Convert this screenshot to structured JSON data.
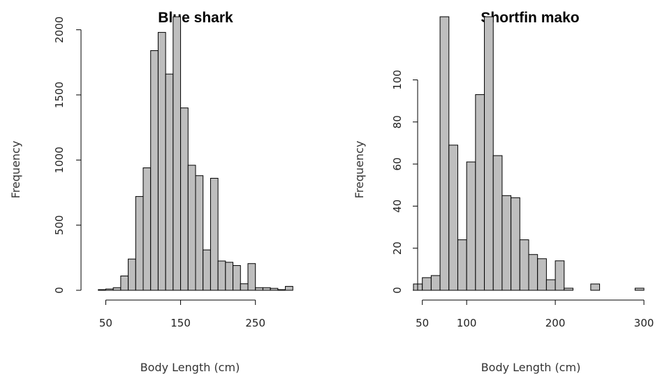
{
  "chart_data": [
    {
      "type": "bar",
      "title": "Blue shark",
      "xlabel": "Body Length (cm)",
      "ylabel": "Frequency",
      "x_ticks": [
        50,
        150,
        250
      ],
      "y_ticks": [
        0,
        500,
        1000,
        1500,
        2000
      ],
      "xlim": [
        30,
        310
      ],
      "ylim": [
        0,
        2100
      ],
      "bin_width": 10,
      "bins_start": [
        40,
        50,
        60,
        70,
        80,
        90,
        100,
        110,
        120,
        130,
        140,
        150,
        160,
        170,
        180,
        190,
        200,
        210,
        220,
        230,
        240,
        250,
        260,
        270,
        280,
        290
      ],
      "values": [
        5,
        10,
        20,
        110,
        240,
        720,
        940,
        1840,
        1980,
        1660,
        2100,
        1400,
        960,
        880,
        310,
        860,
        225,
        215,
        190,
        50,
        205,
        20,
        20,
        15,
        5,
        30
      ],
      "grid": false
    },
    {
      "type": "bar",
      "title": "Shortfin mako",
      "xlabel": "Body Length (cm)",
      "ylabel": "Frequency",
      "x_ticks": [
        50,
        100,
        200,
        300
      ],
      "y_ticks": [
        0,
        20,
        40,
        60,
        80,
        100
      ],
      "xlim": [
        40,
        300
      ],
      "ylim": [
        0,
        130
      ],
      "bin_width": 10,
      "bins_start": [
        40,
        50,
        60,
        70,
        80,
        90,
        100,
        110,
        120,
        130,
        140,
        150,
        160,
        170,
        180,
        190,
        200,
        210,
        220,
        230,
        240,
        250,
        260,
        270,
        280,
        290
      ],
      "values": [
        3,
        6,
        7,
        130,
        69,
        24,
        61,
        93,
        130,
        64,
        45,
        44,
        24,
        17,
        15,
        5,
        14,
        1,
        0,
        0,
        3,
        0,
        0,
        0,
        0,
        1
      ],
      "grid": false
    }
  ]
}
